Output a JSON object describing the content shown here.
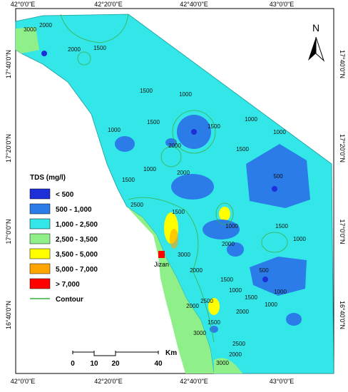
{
  "grid_labels": {
    "top": [
      "42°0'0\"E",
      "42°20'0\"E",
      "42°40'0\"E",
      "43°0'0\"E"
    ],
    "bottom": [
      "42°0'0\"E",
      "42°20'0\"E",
      "42°40'0\"E",
      "43°0'0\"E"
    ],
    "left": [
      "17°40'0\"N",
      "17°20'0\"N",
      "17°0'0\"N",
      "16°40'0\"N"
    ],
    "right": [
      "17°40'0\"N",
      "17°20'0\"N",
      "17°0'0\"N",
      "16°40'0\"N"
    ]
  },
  "legend": {
    "title": "TDS (mg/l)",
    "items": [
      {
        "label": "< 500",
        "color": "#1c2fd8"
      },
      {
        "label": "500 - 1,000",
        "color": "#2b7be8"
      },
      {
        "label": "1,000 - 2,500",
        "color": "#33e6e8"
      },
      {
        "label": "2,500 - 3,500",
        "color": "#8ff08a"
      },
      {
        "label": "3,500 - 5,000",
        "color": "#ffff00"
      },
      {
        "label": "5,000 - 7,000",
        "color": "#ffa500"
      },
      {
        "label": "> 7,000",
        "color": "#ff0000"
      }
    ],
    "contour": {
      "label": "Contour",
      "color": "#3cb043"
    }
  },
  "north": "N",
  "city": "Jizan",
  "scale_bar": {
    "labels": [
      "0",
      "10",
      "20",
      "40"
    ],
    "unit": "Km"
  },
  "contour_labels": [
    3000,
    2000,
    2000,
    1500,
    1500,
    1000,
    1000,
    1500,
    1000,
    2000,
    1500,
    1500,
    1000,
    1500,
    1000,
    2500,
    2000,
    1500,
    500,
    2000,
    1000,
    1500,
    1000,
    500,
    1000,
    3000,
    2000,
    1500,
    1000,
    1500,
    2000,
    2500,
    3000,
    2000,
    1500,
    1000,
    2000,
    2500,
    3000
  ]
}
